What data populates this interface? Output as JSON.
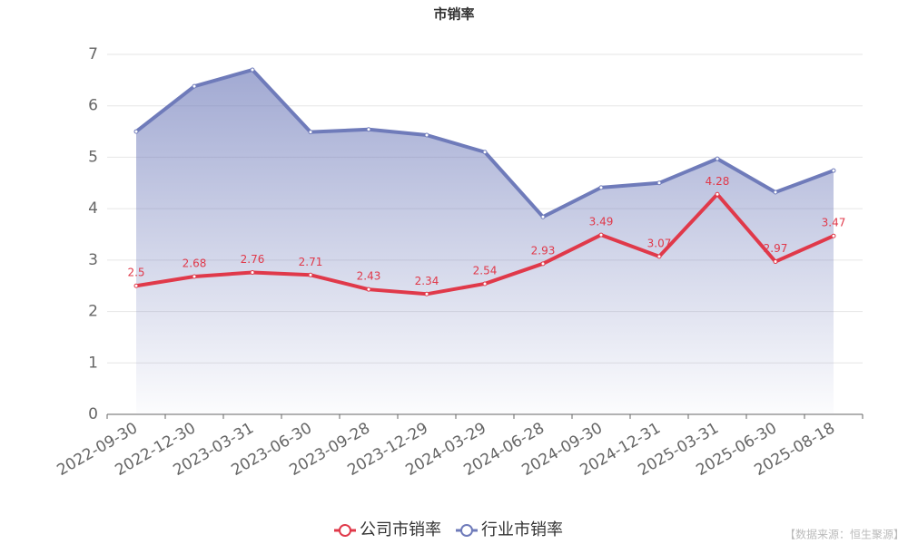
{
  "chart_data": {
    "type": "line",
    "title": "市销率",
    "categories": [
      "2022-09-30",
      "2022-12-30",
      "2023-03-31",
      "2023-06-30",
      "2023-09-28",
      "2023-12-29",
      "2024-03-29",
      "2024-06-28",
      "2024-09-30",
      "2024-12-31",
      "2025-03-31",
      "2025-06-30",
      "2025-08-18"
    ],
    "series": [
      {
        "name": "公司市销率",
        "color": "#e0394a",
        "values": [
          2.5,
          2.68,
          2.76,
          2.71,
          2.43,
          2.34,
          2.54,
          2.93,
          3.49,
          3.07,
          4.28,
          2.97,
          3.47
        ],
        "labels": true
      },
      {
        "name": "行业市销率",
        "color": "#6f7bba",
        "values": [
          5.5,
          6.38,
          6.7,
          5.49,
          5.54,
          5.43,
          5.1,
          3.84,
          4.41,
          4.5,
          4.97,
          4.32,
          4.74
        ],
        "area": true
      }
    ],
    "ylim": [
      0,
      7
    ],
    "yticks": [
      0,
      1,
      2,
      3,
      4,
      5,
      6,
      7
    ],
    "grid": true,
    "source": "【数据来源：恒生聚源】"
  }
}
